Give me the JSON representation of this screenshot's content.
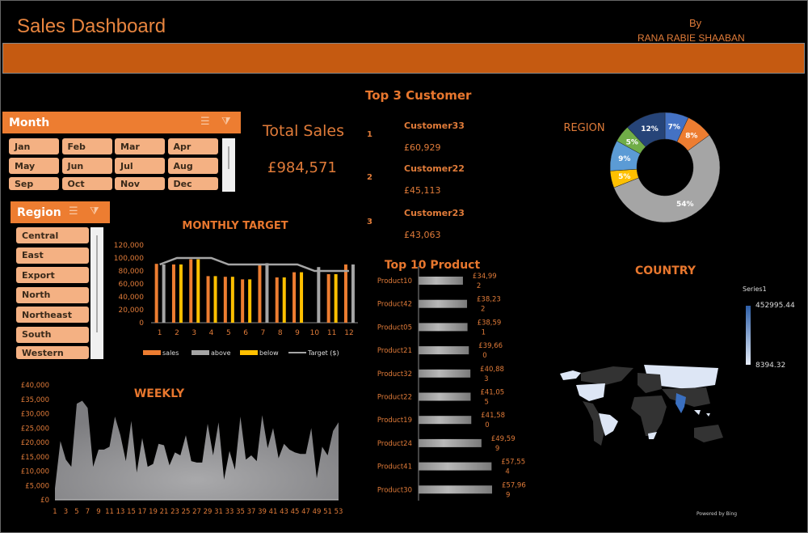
{
  "header": {
    "title": "Sales Dashboard",
    "by": "By",
    "author": "RANA RABIE SHAABAN"
  },
  "month_slicer": {
    "title": "Month",
    "items": [
      "Jan",
      "Feb",
      "Mar",
      "Apr",
      "May",
      "Jun",
      "Jul",
      "Aug",
      "Sep",
      "Oct",
      "Nov",
      "Dec"
    ]
  },
  "region_slicer": {
    "title": "Region",
    "items": [
      "Central",
      "East",
      "Export",
      "North",
      "Northeast",
      "South",
      "Western"
    ]
  },
  "total_sales": {
    "label": "Total Sales",
    "value": "£984,571"
  },
  "top_customers": {
    "title": "Top 3 Customer",
    "items": [
      {
        "rank": "1",
        "name": "Customer33",
        "value": "£60,929"
      },
      {
        "rank": "2",
        "name": "Customer22",
        "value": "£45,113"
      },
      {
        "rank": "3",
        "name": "Customer23",
        "value": "£43,063"
      }
    ]
  },
  "colors": {
    "accent": "#ed7d31",
    "band": "#c55a11",
    "button": "#f4b183"
  },
  "chart_data": [
    {
      "id": "monthly",
      "type": "bar",
      "title": "MONTHLY TARGET",
      "categories": [
        "1",
        "2",
        "3",
        "4",
        "5",
        "6",
        "7",
        "8",
        "9",
        "10",
        "11",
        "12"
      ],
      "yticks": [
        "0",
        "20,000",
        "40,000",
        "60,000",
        "80,000",
        "100,000",
        "120,000"
      ],
      "ylim": [
        0,
        120000
      ],
      "series": [
        {
          "name": "sales",
          "color": "#ed7d31",
          "values": [
            91000,
            90000,
            98000,
            72000,
            71000,
            67000,
            91000,
            70000,
            78000,
            null,
            75000,
            90000
          ]
        },
        {
          "name": "above",
          "color": "#a5a5a5",
          "values": [
            90000,
            null,
            null,
            null,
            null,
            null,
            92000,
            null,
            null,
            86000,
            null,
            90000
          ]
        },
        {
          "name": "below",
          "color": "#ffc000",
          "values": [
            null,
            90000,
            98000,
            72000,
            71000,
            67000,
            null,
            70000,
            78000,
            null,
            75000,
            null
          ]
        },
        {
          "name": "Target ($)",
          "type": "line",
          "color": "#a5a5a5",
          "values": [
            90000,
            100000,
            100000,
            100000,
            90000,
            90000,
            90000,
            90000,
            90000,
            80000,
            80000,
            80000
          ]
        }
      ],
      "legend": "bottom"
    },
    {
      "id": "weekly",
      "type": "area",
      "title": "WEEKLY",
      "ylim": [
        0,
        40000
      ],
      "yticks": [
        "£0",
        "£5,000",
        "£10,000",
        "£15,000",
        "£20,000",
        "£25,000",
        "£30,000",
        "£35,000",
        "£40,000"
      ],
      "xticks": [
        "1",
        "3",
        "5",
        "7",
        "9",
        "11",
        "13",
        "15",
        "17",
        "19",
        "21",
        "23",
        "25",
        "27",
        "29",
        "31",
        "33",
        "35",
        "37",
        "39",
        "41",
        "43",
        "45",
        "47",
        "49",
        "51",
        "53"
      ],
      "values": [
        4000,
        20500,
        14000,
        11500,
        33500,
        34500,
        32000,
        11500,
        17500,
        17500,
        18500,
        29000,
        22500,
        13500,
        27500,
        9500,
        21500,
        11500,
        12500,
        19500,
        19000,
        12000,
        16500,
        15500,
        22500,
        13500,
        13000,
        13000,
        26500,
        15500,
        27000,
        7000,
        17000,
        10500,
        29000,
        14000,
        15500,
        13500,
        29500,
        18000,
        25000,
        14500,
        19500,
        17500,
        16500,
        16000,
        16000,
        25000,
        7500,
        18500,
        15500,
        24000,
        27000
      ]
    },
    {
      "id": "products",
      "type": "bar",
      "title": "Top 10 Product",
      "categories": [
        "Product10",
        "Product42",
        "Product05",
        "Product21",
        "Product32",
        "Product22",
        "Product19",
        "Product24",
        "Product41",
        "Product30"
      ],
      "values": [
        34992,
        38232,
        38591,
        39660,
        40883,
        41055,
        41580,
        49599,
        57554,
        57969
      ],
      "labels": [
        [
          "£34,99",
          "2"
        ],
        [
          "£38,23",
          "2"
        ],
        [
          "£38,59",
          "1"
        ],
        [
          "£39,66",
          "0"
        ],
        [
          "£40,88",
          "3"
        ],
        [
          "£41,05",
          "5"
        ],
        [
          "£41,58",
          "0"
        ],
        [
          "£49,59",
          "9"
        ],
        [
          "£57,55",
          "4"
        ],
        [
          "£57,96",
          "9"
        ]
      ]
    },
    {
      "id": "region",
      "type": "pie",
      "title": "REGION",
      "labels": [
        "7%",
        "8%",
        "54%",
        "5%",
        "9%",
        "5%",
        "12%"
      ],
      "values": [
        7,
        8,
        54,
        5,
        9,
        5,
        12
      ],
      "colors": [
        "#4472c4",
        "#ed7d31",
        "#a5a5a5",
        "#ffc000",
        "#5b9bd5",
        "#70ad47",
        "#264478"
      ]
    }
  ],
  "map": {
    "title": "COUNTRY",
    "legend_title": "Series1",
    "max": "452995.44",
    "min": "8394.32",
    "credit": "Powered by Bing"
  }
}
